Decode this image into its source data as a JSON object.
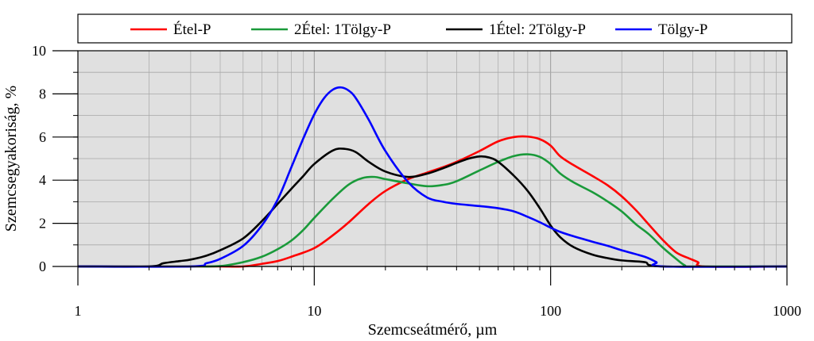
{
  "chart_data": {
    "type": "line",
    "xscale": "log",
    "xlabel": "Szemcseátmérő, µm",
    "ylabel": "Szemcsegyakoriság, %",
    "xlim": [
      1,
      1000
    ],
    "ylim": [
      0,
      10
    ],
    "x_ticks": [
      1,
      10,
      100,
      1000
    ],
    "x_tick_labels": [
      "1",
      "10",
      "100",
      "1000"
    ],
    "y_ticks": [
      0,
      2,
      4,
      6,
      8,
      10
    ],
    "y_tick_labels": [
      "0",
      "2",
      "4",
      "6",
      "8",
      "10"
    ],
    "grid": true,
    "background": "#e0e0e0",
    "legend_position": "top",
    "series": [
      {
        "name": "Étel-P",
        "color": "#ff0000",
        "points": [
          [
            1,
            0
          ],
          [
            2,
            0
          ],
          [
            3,
            0
          ],
          [
            4,
            0
          ],
          [
            5,
            0
          ],
          [
            6,
            0.12
          ],
          [
            7,
            0.25
          ],
          [
            8,
            0.45
          ],
          [
            10,
            0.85
          ],
          [
            12,
            1.45
          ],
          [
            14,
            2.05
          ],
          [
            17,
            2.9
          ],
          [
            20,
            3.5
          ],
          [
            25,
            4.05
          ],
          [
            30,
            4.35
          ],
          [
            35,
            4.6
          ],
          [
            40,
            4.85
          ],
          [
            50,
            5.35
          ],
          [
            60,
            5.8
          ],
          [
            70,
            6.0
          ],
          [
            80,
            6.02
          ],
          [
            90,
            5.9
          ],
          [
            100,
            5.6
          ],
          [
            110,
            5.1
          ],
          [
            125,
            4.7
          ],
          [
            150,
            4.2
          ],
          [
            175,
            3.75
          ],
          [
            200,
            3.25
          ],
          [
            230,
            2.6
          ],
          [
            260,
            1.95
          ],
          [
            300,
            1.2
          ],
          [
            340,
            0.65
          ],
          [
            380,
            0.4
          ],
          [
            420,
            0.2
          ],
          [
            450,
            0
          ],
          [
            1000,
            0
          ]
        ]
      },
      {
        "name": "2Étel: 1Tölgy-P",
        "color": "#1a9a3a",
        "points": [
          [
            1,
            0
          ],
          [
            3,
            0
          ],
          [
            4,
            0.02
          ],
          [
            5,
            0.2
          ],
          [
            6,
            0.45
          ],
          [
            7,
            0.8
          ],
          [
            8,
            1.2
          ],
          [
            9,
            1.7
          ],
          [
            10,
            2.25
          ],
          [
            12,
            3.15
          ],
          [
            14,
            3.8
          ],
          [
            16,
            4.1
          ],
          [
            18,
            4.15
          ],
          [
            20,
            4.05
          ],
          [
            25,
            3.85
          ],
          [
            30,
            3.72
          ],
          [
            35,
            3.78
          ],
          [
            40,
            3.95
          ],
          [
            50,
            4.45
          ],
          [
            60,
            4.85
          ],
          [
            70,
            5.12
          ],
          [
            80,
            5.2
          ],
          [
            90,
            5.08
          ],
          [
            100,
            4.75
          ],
          [
            110,
            4.3
          ],
          [
            125,
            3.9
          ],
          [
            150,
            3.45
          ],
          [
            175,
            3.0
          ],
          [
            200,
            2.55
          ],
          [
            230,
            1.95
          ],
          [
            260,
            1.5
          ],
          [
            300,
            0.85
          ],
          [
            340,
            0.35
          ],
          [
            370,
            0.05
          ],
          [
            400,
            0
          ],
          [
            1000,
            0
          ]
        ]
      },
      {
        "name": "1Étel: 2Tölgy-P",
        "color": "#000000",
        "points": [
          [
            1,
            0
          ],
          [
            2,
            0
          ],
          [
            2.3,
            0.15
          ],
          [
            2.7,
            0.25
          ],
          [
            3,
            0.32
          ],
          [
            3.5,
            0.5
          ],
          [
            4,
            0.75
          ],
          [
            5,
            1.3
          ],
          [
            6,
            2.1
          ],
          [
            7,
            2.9
          ],
          [
            8,
            3.6
          ],
          [
            9,
            4.2
          ],
          [
            10,
            4.75
          ],
          [
            12,
            5.38
          ],
          [
            13.5,
            5.45
          ],
          [
            15,
            5.3
          ],
          [
            17,
            4.85
          ],
          [
            20,
            4.4
          ],
          [
            25,
            4.15
          ],
          [
            30,
            4.3
          ],
          [
            35,
            4.55
          ],
          [
            40,
            4.8
          ],
          [
            45,
            5.0
          ],
          [
            50,
            5.1
          ],
          [
            55,
            5.05
          ],
          [
            60,
            4.85
          ],
          [
            70,
            4.2
          ],
          [
            80,
            3.5
          ],
          [
            90,
            2.7
          ],
          [
            100,
            1.9
          ],
          [
            110,
            1.35
          ],
          [
            125,
            0.9
          ],
          [
            150,
            0.55
          ],
          [
            175,
            0.38
          ],
          [
            200,
            0.28
          ],
          [
            250,
            0.2
          ],
          [
            300,
            0
          ],
          [
            1000,
            0
          ]
        ]
      },
      {
        "name": "Tölgy-P",
        "color": "#0000ff",
        "points": [
          [
            1,
            0
          ],
          [
            3,
            0
          ],
          [
            3.5,
            0.15
          ],
          [
            4,
            0.35
          ],
          [
            5,
            0.95
          ],
          [
            6,
            1.9
          ],
          [
            7,
            3.1
          ],
          [
            8,
            4.6
          ],
          [
            9,
            5.95
          ],
          [
            10,
            7.05
          ],
          [
            11,
            7.8
          ],
          [
            12,
            8.2
          ],
          [
            13,
            8.3
          ],
          [
            14,
            8.15
          ],
          [
            15,
            7.8
          ],
          [
            17,
            6.8
          ],
          [
            20,
            5.35
          ],
          [
            25,
            3.9
          ],
          [
            30,
            3.2
          ],
          [
            35,
            3.0
          ],
          [
            40,
            2.9
          ],
          [
            50,
            2.8
          ],
          [
            60,
            2.7
          ],
          [
            70,
            2.55
          ],
          [
            80,
            2.3
          ],
          [
            90,
            2.05
          ],
          [
            100,
            1.8
          ],
          [
            110,
            1.6
          ],
          [
            125,
            1.4
          ],
          [
            150,
            1.15
          ],
          [
            175,
            0.95
          ],
          [
            200,
            0.75
          ],
          [
            250,
            0.45
          ],
          [
            280,
            0.2
          ],
          [
            300,
            0
          ],
          [
            1000,
            0
          ]
        ]
      }
    ]
  }
}
